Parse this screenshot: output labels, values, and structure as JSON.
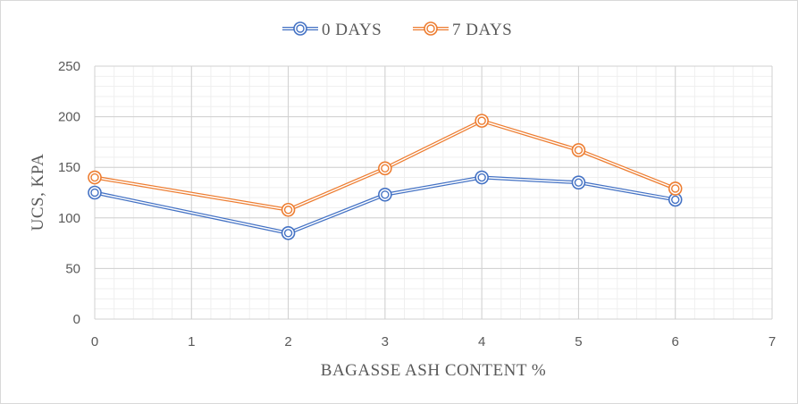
{
  "chart_data": {
    "type": "line",
    "title": "",
    "xlabel": "BAGASSE  ASH CONTENT %",
    "ylabel": "UCS, KPA",
    "xlim": [
      0,
      7
    ],
    "ylim": [
      0,
      250
    ],
    "x_ticks": [
      "0",
      "1",
      "2",
      "3",
      "4",
      "5",
      "6",
      "7"
    ],
    "y_ticks": [
      "0",
      "50",
      "100",
      "150",
      "200",
      "250"
    ],
    "grid": true,
    "legend_position": "top",
    "series": [
      {
        "name": "0 DAYS",
        "color": "#4472c4",
        "marker": "double-circle",
        "x": [
          0,
          2,
          3,
          4,
          5,
          6
        ],
        "y": [
          125,
          85,
          123,
          140,
          135,
          118
        ]
      },
      {
        "name": "7 DAYS",
        "color": "#ed7d31",
        "marker": "double-circle",
        "x": [
          0,
          2,
          3,
          4,
          5,
          6
        ],
        "y": [
          140,
          108,
          149,
          196,
          167,
          129
        ]
      }
    ]
  }
}
